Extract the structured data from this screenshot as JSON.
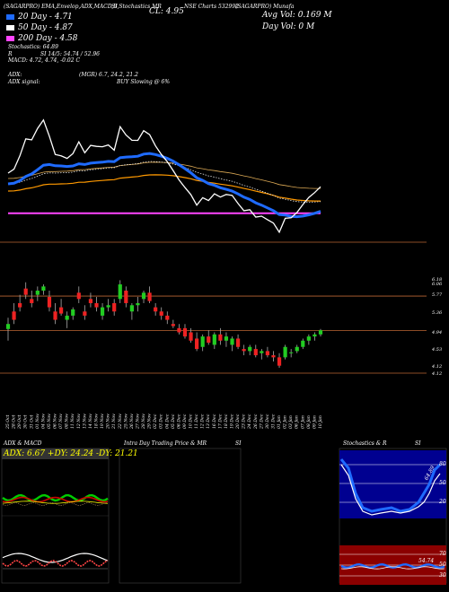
{
  "header": {
    "line1": [
      {
        "text": "(SAGARPRO) EMA,Envelop,ADX,MACD,B",
        "x": 4
      },
      {
        "text": "SI,Stochastics,MR",
        "x": 124
      },
      {
        "text": "NSE Charts 532992",
        "x": 205
      },
      {
        "text": "(SAGARPRO) Munafa",
        "x": 262
      }
    ],
    "cl": "CL: 4.95",
    "avg_vol": "Avg Vol: 0.169 M",
    "day_vol": "Day Vol: 0   M",
    "legend": [
      {
        "label": "20 Day - 4.71",
        "color": "#1f6bff"
      },
      {
        "label": "50 Day - 4.87",
        "color": "#ffffff"
      },
      {
        "label": "200 Day - 4.58",
        "color": "#ff44ff"
      }
    ],
    "stochastics": "Stochastics: 64.89",
    "rsi": "SI 14/5: 54.74 / 52.96",
    "rsi_prefix": "R",
    "macd": "MACD: 4.72, 4.74, -0.02 C",
    "adx_line": "ADX:",
    "adx_value": "(MGR) 6.7, 24.2, 21.2",
    "adx_signal_label": "ADX  signal:",
    "adx_signal": "BUY Slowing @ 6%"
  },
  "price_axis": {
    "labels": [
      {
        "text": "6.18",
        "y": 311
      },
      {
        "text": "6.06",
        "y": 316
      },
      {
        "text": "5.77",
        "y": 328
      },
      {
        "text": "5.36",
        "y": 348
      },
      {
        "text": "4.94",
        "y": 370
      },
      {
        "text": "4.53",
        "y": 389
      },
      {
        "text": "4.12",
        "y": 408
      },
      {
        "text": "4.12",
        "y": 416
      }
    ],
    "levels": [
      {
        "value": 5.77,
        "color": "#bb6633"
      },
      {
        "value": 4.94,
        "color": "#bb6633"
      },
      {
        "value": 4.12,
        "color": "#bb6633"
      }
    ]
  },
  "dates": [
    "25 Oct",
    "28 Oct",
    "29 Oct",
    "30 Oct",
    "31 Oct",
    "01 Nov",
    "04 Nov",
    "05 Nov",
    "06 Nov",
    "07 Nov",
    "08 Nov",
    "11 Nov",
    "12 Nov",
    "13 Nov",
    "14 Nov",
    "18 Nov",
    "19 Nov",
    "20 Nov",
    "21 Nov",
    "22 Nov",
    "25 Nov",
    "26 Nov",
    "27 Nov",
    "28 Nov",
    "29 Nov",
    "02 Dec",
    "03 Dec",
    "04 Dec",
    "05 Dec",
    "06 Dec",
    "09 Dec",
    "10 Dec",
    "11 Dec",
    "12 Dec",
    "13 Dec",
    "16 Dec",
    "17 Dec",
    "18 Dec",
    "19 Dec",
    "20 Dec",
    "23 Dec",
    "24 Dec",
    "26 Dec",
    "27 Dec",
    "30 Dec",
    "31 Dec",
    "01 Jan",
    "02 Jan",
    "03 Jan",
    "06 Jan",
    "07 Jan",
    "08 Jan",
    "09 Jan",
    "10 Jan"
  ],
  "chart_data": {
    "type": "candlestick",
    "candles": [
      {
        "o": 4.98,
        "h": 5.25,
        "l": 4.7,
        "c": 5.1
      },
      {
        "o": 5.4,
        "h": 5.6,
        "l": 5.1,
        "c": 5.2
      },
      {
        "o": 5.6,
        "h": 5.8,
        "l": 5.4,
        "c": 5.5
      },
      {
        "o": 5.95,
        "h": 6.1,
        "l": 5.7,
        "c": 5.8
      },
      {
        "o": 5.7,
        "h": 5.9,
        "l": 5.5,
        "c": 5.6
      },
      {
        "o": 5.8,
        "h": 6.0,
        "l": 5.65,
        "c": 5.9
      },
      {
        "o": 5.9,
        "h": 6.05,
        "l": 5.8,
        "c": 6.0
      },
      {
        "o": 5.75,
        "h": 5.9,
        "l": 5.4,
        "c": 5.5
      },
      {
        "o": 5.4,
        "h": 5.6,
        "l": 5.1,
        "c": 5.2
      },
      {
        "o": 5.5,
        "h": 5.7,
        "l": 5.3,
        "c": 5.35
      },
      {
        "o": 5.2,
        "h": 5.4,
        "l": 5.0,
        "c": 5.3
      },
      {
        "o": 5.3,
        "h": 5.5,
        "l": 5.2,
        "c": 5.45
      },
      {
        "o": 5.85,
        "h": 6.0,
        "l": 5.6,
        "c": 5.7
      },
      {
        "o": 5.4,
        "h": 5.55,
        "l": 5.2,
        "c": 5.3
      },
      {
        "o": 5.7,
        "h": 5.85,
        "l": 5.5,
        "c": 5.6
      },
      {
        "o": 5.6,
        "h": 5.75,
        "l": 5.4,
        "c": 5.5
      },
      {
        "o": 5.3,
        "h": 5.6,
        "l": 5.2,
        "c": 5.5
      },
      {
        "o": 5.5,
        "h": 5.7,
        "l": 5.4,
        "c": 5.55
      },
      {
        "o": 5.6,
        "h": 5.7,
        "l": 5.3,
        "c": 5.4
      },
      {
        "o": 5.7,
        "h": 6.15,
        "l": 5.6,
        "c": 6.05
      },
      {
        "o": 5.9,
        "h": 6.0,
        "l": 5.5,
        "c": 5.6
      },
      {
        "o": 5.4,
        "h": 5.6,
        "l": 5.2,
        "c": 5.55
      },
      {
        "o": 5.55,
        "h": 5.75,
        "l": 5.4,
        "c": 5.6
      },
      {
        "o": 5.7,
        "h": 5.9,
        "l": 5.6,
        "c": 5.85
      },
      {
        "o": 5.85,
        "h": 6.0,
        "l": 5.6,
        "c": 5.65
      },
      {
        "o": 5.5,
        "h": 5.6,
        "l": 5.3,
        "c": 5.4
      },
      {
        "o": 5.4,
        "h": 5.5,
        "l": 5.2,
        "c": 5.3
      },
      {
        "o": 5.3,
        "h": 5.4,
        "l": 5.1,
        "c": 5.2
      },
      {
        "o": 5.1,
        "h": 5.2,
        "l": 5.0,
        "c": 5.05
      },
      {
        "o": 5.0,
        "h": 5.1,
        "l": 4.85,
        "c": 4.9
      },
      {
        "o": 5.0,
        "h": 5.1,
        "l": 4.75,
        "c": 4.8
      },
      {
        "o": 4.9,
        "h": 5.0,
        "l": 4.65,
        "c": 4.7
      },
      {
        "o": 4.75,
        "h": 4.9,
        "l": 4.45,
        "c": 4.5
      },
      {
        "o": 4.55,
        "h": 4.85,
        "l": 4.45,
        "c": 4.8
      },
      {
        "o": 4.8,
        "h": 4.95,
        "l": 4.6,
        "c": 4.65
      },
      {
        "o": 4.6,
        "h": 4.9,
        "l": 4.5,
        "c": 4.85
      },
      {
        "o": 4.85,
        "h": 5.0,
        "l": 4.6,
        "c": 4.7
      },
      {
        "o": 4.7,
        "h": 4.9,
        "l": 4.55,
        "c": 4.8
      },
      {
        "o": 4.6,
        "h": 4.8,
        "l": 4.45,
        "c": 4.75
      },
      {
        "o": 4.75,
        "h": 4.85,
        "l": 4.5,
        "c": 4.55
      },
      {
        "o": 4.5,
        "h": 4.6,
        "l": 4.35,
        "c": 4.45
      },
      {
        "o": 4.45,
        "h": 4.6,
        "l": 4.35,
        "c": 4.55
      },
      {
        "o": 4.5,
        "h": 4.6,
        "l": 4.3,
        "c": 4.35
      },
      {
        "o": 4.4,
        "h": 4.5,
        "l": 4.25,
        "c": 4.45
      },
      {
        "o": 4.45,
        "h": 4.55,
        "l": 4.3,
        "c": 4.35
      },
      {
        "o": 4.35,
        "h": 4.45,
        "l": 4.2,
        "c": 4.3
      },
      {
        "o": 4.3,
        "h": 4.4,
        "l": 4.05,
        "c": 4.1
      },
      {
        "o": 4.3,
        "h": 4.6,
        "l": 4.25,
        "c": 4.55
      },
      {
        "o": 4.4,
        "h": 4.5,
        "l": 4.3,
        "c": 4.42
      },
      {
        "o": 4.45,
        "h": 4.6,
        "l": 4.4,
        "c": 4.55
      },
      {
        "o": 4.55,
        "h": 4.75,
        "l": 4.5,
        "c": 4.7
      },
      {
        "o": 4.7,
        "h": 4.85,
        "l": 4.6,
        "c": 4.8
      },
      {
        "o": 4.8,
        "h": 4.9,
        "l": 4.7,
        "c": 4.85
      },
      {
        "o": 4.85,
        "h": 4.98,
        "l": 4.8,
        "c": 4.95
      }
    ]
  },
  "panels": {
    "adx": {
      "title": "ADX  & MACD",
      "readout": "ADX: 6.67  +DY: 24.24  -DY: 21.21"
    },
    "intraday": {
      "title": "Intra Day Trading Price  & MR",
      "title_suffix": "SI"
    },
    "stoch": {
      "title": "Stochastics & R",
      "title_suffix": "SI",
      "levels": [
        "80",
        "50",
        "20"
      ],
      "rsi_levels": [
        "70",
        "50",
        "30"
      ],
      "value_label": "64.89",
      "rsi_value": "54.74"
    }
  },
  "colors": {
    "up": "#22cc22",
    "down": "#ee2222",
    "ema20": "#1f6bff",
    "ema50": "#ffffff",
    "ema200": "#ff44ff",
    "envelope": "#ff9900"
  }
}
